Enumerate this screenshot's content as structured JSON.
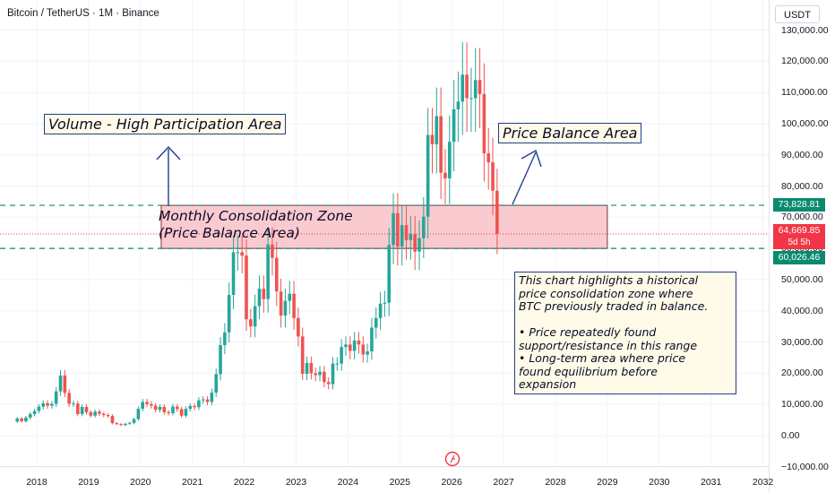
{
  "header": {
    "symbol": "Bitcoin / TetherUS · 1M · Binance"
  },
  "currency_button": "USDT",
  "price_tags": {
    "upper": "73,828.81",
    "current": "64,669.85",
    "countdown": "5d 5h",
    "lower": "60,026.46"
  },
  "annotations": {
    "volume_label": "Volume - High Participation Area",
    "balance_label": "Price Balance Area",
    "zone_line1": "Monthly Consolidation Zone",
    "zone_line2": "(Price Balance Area)",
    "note_lines": [
      "This chart highlights a historical",
      "price consolidation zone where",
      "BTC previously traded in balance.",
      "",
      "• Price repeatedly found",
      "support/resistance in this range",
      "• Long-term area where price",
      "found equilibrium before",
      "expansion"
    ]
  },
  "chart_data": {
    "type": "candlestick",
    "interval": "1M",
    "y_ticks": [
      "130,000.00",
      "120,000.00",
      "110,000.00",
      "100,000.00",
      "90,000.00",
      "80,000.00",
      "70,000.00",
      "60,000.00",
      "50,000.00",
      "40,000.00",
      "30,000.00",
      "20,000.00",
      "10,000.00",
      "0.00",
      "−10,000.00"
    ],
    "y_tick_values": [
      130000,
      120000,
      110000,
      100000,
      90000,
      80000,
      70000,
      60000,
      50000,
      40000,
      30000,
      20000,
      10000,
      0,
      -10000
    ],
    "x_ticks": [
      "2018",
      "2019",
      "2020",
      "2021",
      "2022",
      "2023",
      "2024",
      "2025",
      "2026",
      "2027",
      "2028",
      "2029",
      "2030",
      "2031",
      "2032"
    ],
    "x_tick_values": [
      2018,
      2019,
      2020,
      2021,
      2022,
      2023,
      2024,
      2025,
      2026,
      2027,
      2028,
      2029,
      2030,
      2031,
      2032
    ],
    "zone": {
      "low": 60026.46,
      "high": 73828.81,
      "start": 2020.4,
      "end": 2029.0
    },
    "current_price": 64669.85,
    "colors": {
      "up": "#26a69a",
      "down": "#ef5350",
      "zone_fill": "#f8c2c8",
      "dashed_line": "#0b8a6f",
      "annotation_border": "#1f3e8c"
    },
    "closes": [
      5500,
      4600,
      5800,
      6900,
      7900,
      9300,
      10400,
      9600,
      10200,
      14200,
      19300,
      13700,
      10200,
      10300,
      6900,
      9200,
      7500,
      6400,
      7700,
      7000,
      6600,
      6300,
      4000,
      3700,
      3400,
      3800,
      4100,
      5300,
      8600,
      10800,
      10100,
      9600,
      8300,
      9200,
      7500,
      7200,
      9300,
      8500,
      6400,
      8600,
      9500,
      9100,
      11300,
      11600,
      10800,
      13800,
      19700,
      29000,
      33100,
      45100,
      58800,
      58800,
      57700,
      37300,
      35000,
      41500,
      47100,
      43800,
      61300,
      57000,
      46200,
      38500,
      43200,
      45500,
      37700,
      31800,
      19800,
      23300,
      20000,
      19400,
      20500,
      17200,
      16500,
      23100,
      23100,
      28400,
      29200,
      27200,
      30500,
      29200,
      26000,
      27000,
      34600,
      37700,
      42300,
      42600,
      61100,
      71300,
      60600,
      67500,
      62700,
      64600,
      59000,
      63300,
      70200,
      96400,
      93400,
      102400,
      84300,
      82500,
      94200,
      104600,
      107100,
      115700,
      108200,
      108200,
      114000,
      109500,
      90500,
      87600,
      78500,
      64670
    ]
  }
}
